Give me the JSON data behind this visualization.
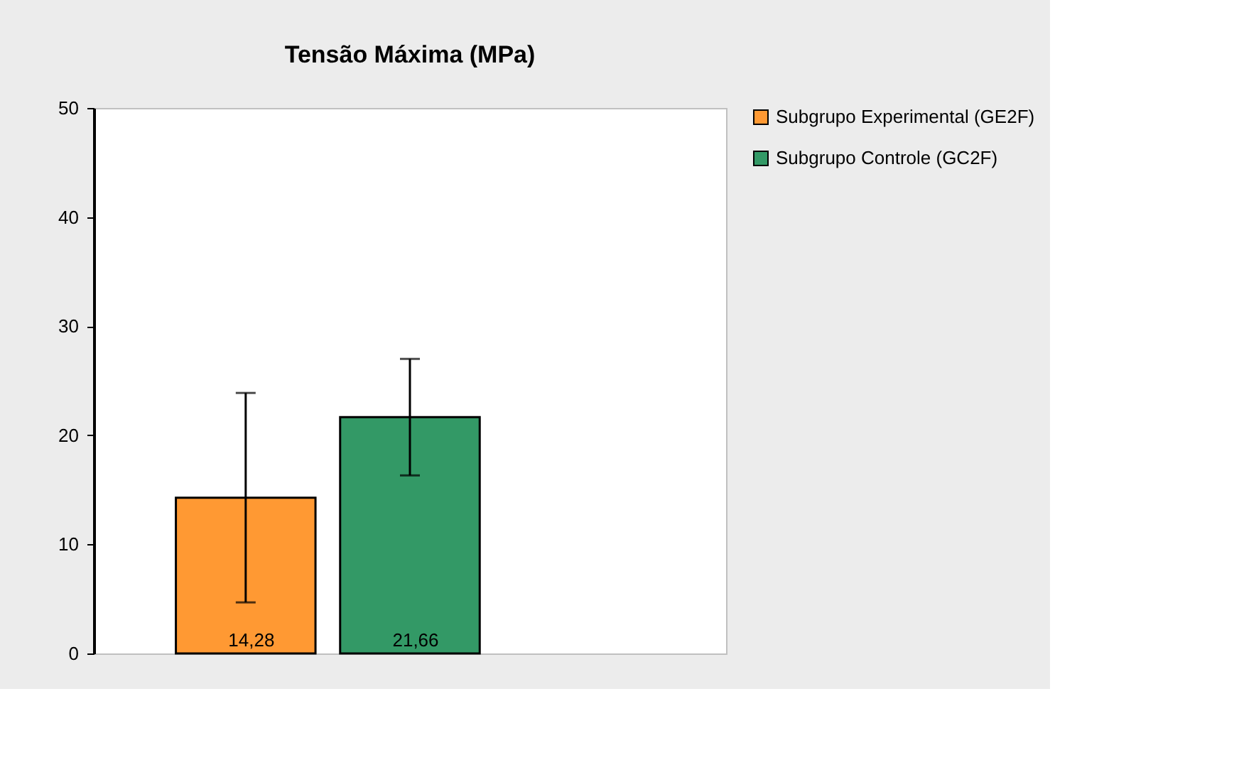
{
  "chart_data": {
    "type": "bar",
    "title": "Tensão Máxima (MPa)",
    "categories": [
      null
    ],
    "series": [
      {
        "name": "Subgrupo Experimental (GE2F)",
        "color": "#ff9933",
        "values": [
          14.28
        ],
        "value_labels": [
          "14,28"
        ],
        "errors": [
          9.6
        ]
      },
      {
        "name": "Subgrupo Controle (GC2F)",
        "color": "#339966",
        "values": [
          21.66
        ],
        "value_labels": [
          "21,66"
        ],
        "errors": [
          5.34
        ]
      }
    ],
    "ylim": [
      0,
      50
    ],
    "yticks": [
      0,
      10,
      20,
      30,
      40,
      50
    ],
    "grid": false,
    "legend": "right"
  }
}
